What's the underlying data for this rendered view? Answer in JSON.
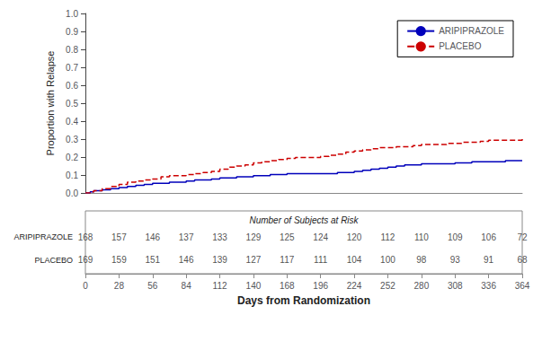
{
  "chart_data": {
    "type": "step",
    "xlabel": "Days from Randomization",
    "ylabel": "Proportion with Relapse",
    "xlim": [
      0,
      364
    ],
    "ylim": [
      0.0,
      1.0
    ],
    "xticks": [
      0,
      28,
      56,
      84,
      112,
      140,
      168,
      196,
      224,
      252,
      280,
      308,
      336,
      364
    ],
    "yticks": [
      {
        "value": 0.0,
        "label": "0.0"
      },
      0.1,
      0.2,
      0.3,
      0.4,
      0.5,
      0.6,
      0.7,
      0.8,
      0.9,
      {
        "value": 1.0,
        "label": "1.0"
      }
    ],
    "grid": false,
    "legend": "upper right",
    "x": [
      0,
      4,
      7,
      14,
      21,
      28,
      35,
      42,
      49,
      56,
      63,
      70,
      77,
      84,
      91,
      98,
      105,
      112,
      119,
      126,
      133,
      140,
      147,
      154,
      161,
      168,
      175,
      182,
      189,
      196,
      203,
      210,
      217,
      224,
      231,
      238,
      245,
      252,
      259,
      266,
      273,
      280,
      287,
      294,
      301,
      308,
      315,
      322,
      329,
      336,
      343,
      350,
      357,
      364
    ],
    "series": [
      {
        "name": "ARIPIPRAZOLE",
        "color": "#0000BB",
        "line_style": "solid",
        "values": [
          0.0,
          0.006,
          0.012,
          0.018,
          0.024,
          0.03,
          0.036,
          0.042,
          0.048,
          0.054,
          0.054,
          0.06,
          0.06,
          0.066,
          0.072,
          0.072,
          0.078,
          0.084,
          0.084,
          0.09,
          0.09,
          0.096,
          0.096,
          0.102,
          0.102,
          0.108,
          0.108,
          0.108,
          0.108,
          0.108,
          0.108,
          0.114,
          0.114,
          0.12,
          0.126,
          0.132,
          0.138,
          0.144,
          0.15,
          0.156,
          0.156,
          0.162,
          0.162,
          0.162,
          0.162,
          0.168,
          0.168,
          0.174,
          0.174,
          0.174,
          0.174,
          0.18,
          0.18,
          0.18
        ]
      },
      {
        "name": "PLACEBO",
        "color": "#CC0000",
        "line_style": "dashed",
        "values": [
          0.0,
          0.006,
          0.012,
          0.024,
          0.036,
          0.048,
          0.06,
          0.066,
          0.072,
          0.078,
          0.09,
          0.096,
          0.096,
          0.102,
          0.108,
          0.114,
          0.12,
          0.132,
          0.144,
          0.15,
          0.156,
          0.168,
          0.174,
          0.18,
          0.186,
          0.192,
          0.198,
          0.198,
          0.198,
          0.204,
          0.21,
          0.216,
          0.228,
          0.234,
          0.24,
          0.246,
          0.252,
          0.252,
          0.258,
          0.258,
          0.264,
          0.27,
          0.27,
          0.27,
          0.276,
          0.276,
          0.282,
          0.282,
          0.288,
          0.294,
          0.294,
          0.294,
          0.294,
          0.3
        ]
      }
    ],
    "risk_table": {
      "title": "Number of Subjects at Risk",
      "rows": [
        {
          "name": "ARIPIPRAZOLE",
          "values": [
            168,
            157,
            146,
            137,
            133,
            129,
            125,
            124,
            120,
            112,
            110,
            109,
            106,
            72
          ]
        },
        {
          "name": "PLACEBO",
          "values": [
            169,
            159,
            151,
            146,
            139,
            127,
            117,
            111,
            104,
            100,
            98,
            93,
            91,
            68
          ]
        }
      ]
    }
  }
}
